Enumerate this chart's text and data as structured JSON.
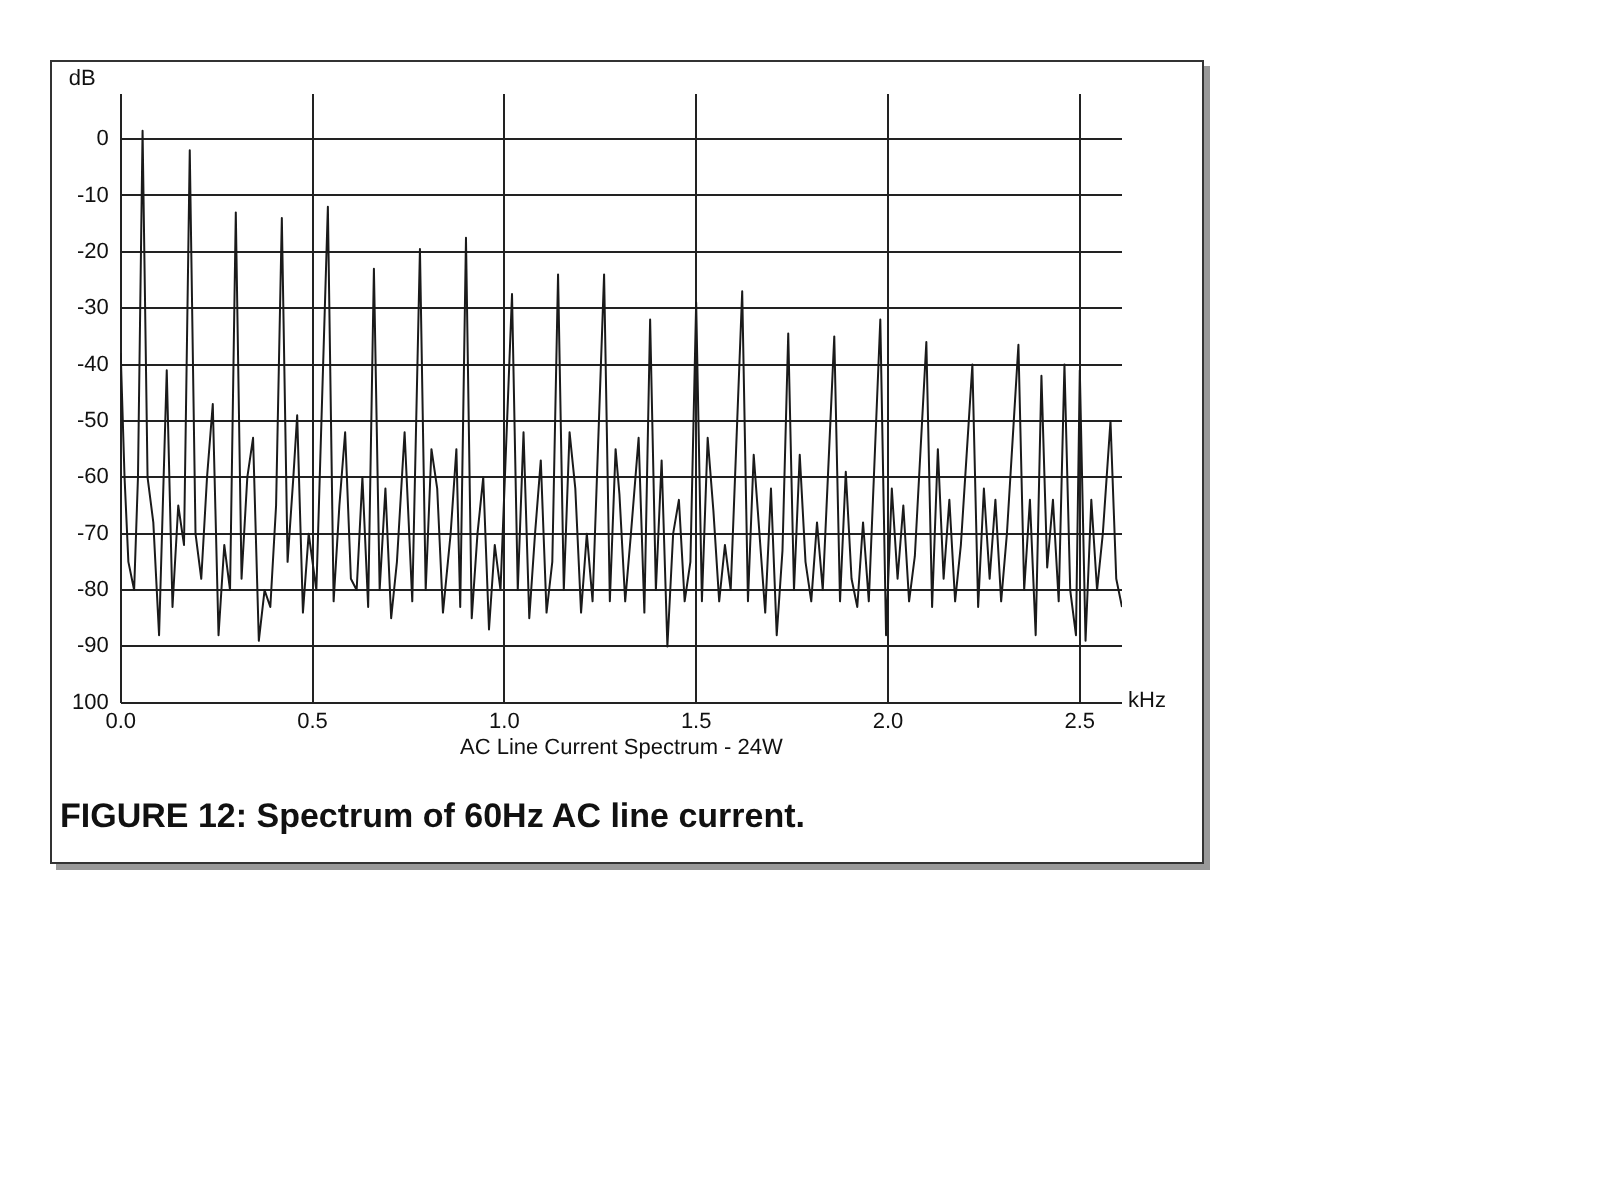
{
  "chart_data": {
    "type": "line",
    "title": "FIGURE 12: Spectrum of 60Hz AC line current.",
    "xlabel": "kHz",
    "ylabel": "dB",
    "annotations": [
      "AC Line Current Spectrum - 24W"
    ],
    "xlim": [
      0,
      2.61
    ],
    "xticks": [
      {
        "value": 0,
        "label": "0.0"
      },
      0.5,
      {
        "value": 1,
        "label": "1.0"
      },
      1.5,
      {
        "value": 2,
        "label": "2.0"
      },
      2.5
    ],
    "ylim": [
      -100,
      8
    ],
    "yticks": [
      0,
      -10,
      -20,
      -30,
      -40,
      -50,
      -60,
      -70,
      -80,
      -90,
      {
        "value": -100,
        "label": "100"
      }
    ],
    "grid": true,
    "legend": false,
    "marker": "none",
    "line_style": "solid",
    "series": [
      {
        "color": "#1a1a1a",
        "x": [
          0,
          0.01,
          0.02,
          0.035,
          0.045,
          0.057,
          0.07,
          0.085,
          0.1,
          0.12,
          0.135,
          0.15,
          0.165,
          0.18,
          0.195,
          0.21,
          0.225,
          0.24,
          0.255,
          0.27,
          0.285,
          0.3,
          0.315,
          0.33,
          0.345,
          0.36,
          0.375,
          0.39,
          0.405,
          0.42,
          0.435,
          0.45,
          0.46,
          0.475,
          0.49,
          0.51,
          0.54,
          0.555,
          0.57,
          0.585,
          0.6,
          0.615,
          0.63,
          0.645,
          0.66,
          0.675,
          0.69,
          0.705,
          0.72,
          0.74,
          0.76,
          0.78,
          0.795,
          0.81,
          0.825,
          0.84,
          0.86,
          0.875,
          0.885,
          0.9,
          0.915,
          0.93,
          0.945,
          0.96,
          0.975,
          0.99,
          1.02,
          1.035,
          1.05,
          1.065,
          1.08,
          1.095,
          1.11,
          1.125,
          1.14,
          1.155,
          1.17,
          1.185,
          1.2,
          1.215,
          1.23,
          1.26,
          1.275,
          1.29,
          1.3,
          1.315,
          1.33,
          1.35,
          1.365,
          1.38,
          1.395,
          1.41,
          1.425,
          1.44,
          1.455,
          1.47,
          1.485,
          1.5,
          1.515,
          1.53,
          1.545,
          1.56,
          1.575,
          1.59,
          1.62,
          1.635,
          1.65,
          1.665,
          1.68,
          1.695,
          1.71,
          1.725,
          1.74,
          1.755,
          1.77,
          1.785,
          1.8,
          1.815,
          1.83,
          1.86,
          1.875,
          1.89,
          1.905,
          1.92,
          1.935,
          1.95,
          1.98,
          1.995,
          2.01,
          2.025,
          2.04,
          2.055,
          2.07,
          2.1,
          2.115,
          2.13,
          2.145,
          2.16,
          2.175,
          2.19,
          2.22,
          2.235,
          2.25,
          2.265,
          2.28,
          2.295,
          2.31,
          2.34,
          2.355,
          2.37,
          2.385,
          2.4,
          2.415,
          2.43,
          2.445,
          2.46,
          2.475,
          2.49,
          2.5,
          2.515,
          2.53,
          2.545,
          2.56,
          2.58,
          2.595,
          2.61
        ],
        "values": [
          -38,
          -60,
          -75,
          -80,
          -60,
          1.5,
          -60,
          -68,
          -88,
          -41,
          -83,
          -65,
          -72,
          -2,
          -70,
          -78,
          -60,
          -47,
          -88,
          -72,
          -80,
          -13,
          -78,
          -60,
          -53,
          -89,
          -80,
          -83,
          -65,
          -14,
          -75,
          -60,
          -49,
          -84,
          -70,
          -80,
          -12,
          -82,
          -65,
          -52,
          -78,
          -80,
          -60,
          -83,
          -23,
          -80,
          -62,
          -85,
          -75,
          -52,
          -82,
          -19.5,
          -80,
          -55,
          -62,
          -84,
          -70,
          -55,
          -83,
          -17.5,
          -85,
          -70,
          -60,
          -87,
          -72,
          -80,
          -27.5,
          -80,
          -52,
          -85,
          -70,
          -57,
          -84,
          -75,
          -24,
          -80,
          -52,
          -62,
          -84,
          -70,
          -82,
          -24,
          -82,
          -55,
          -63,
          -82,
          -70,
          -53,
          -84,
          -32,
          -80,
          -57,
          -90,
          -70,
          -64,
          -82,
          -75,
          -29,
          -82,
          -53,
          -66,
          -82,
          -72,
          -80,
          -27,
          -82,
          -56,
          -70,
          -84,
          -62,
          -88,
          -73,
          -34.5,
          -80,
          -56,
          -75,
          -82,
          -68,
          -80,
          -35,
          -82,
          -59,
          -78,
          -83,
          -68,
          -82,
          -32,
          -88,
          -62,
          -78,
          -65,
          -82,
          -74,
          -36,
          -83,
          -55,
          -78,
          -64,
          -82,
          -72,
          -40,
          -83,
          -62,
          -78,
          -64,
          -82,
          -70,
          -36.5,
          -80,
          -64,
          -88,
          -42,
          -76,
          -64,
          -82,
          -40,
          -80,
          -88,
          -41,
          -89,
          -64,
          -80,
          -70,
          -50,
          -78,
          -83
        ]
      }
    ]
  }
}
